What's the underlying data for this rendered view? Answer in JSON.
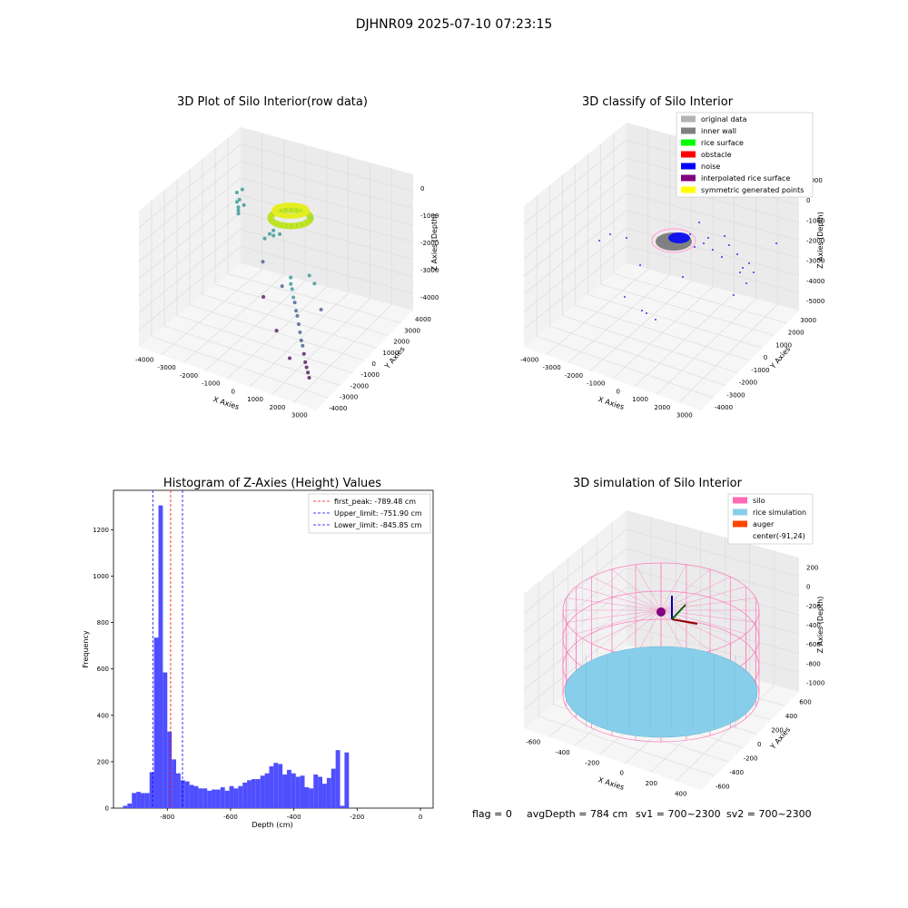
{
  "suptitle": "DJHNR09 2025-07-10 07:23:15",
  "footer": {
    "flag": "flag = 0",
    "avg": "avgDepth = 784 cm",
    "sv1": "sv1 = 700~2300",
    "sv2": "sv2 = 700~2300"
  },
  "colors": {
    "pane": "#f2f2f2",
    "grid": "#d9d9d9",
    "hist_bar": "#4f4fff",
    "silo": "#ff69b4",
    "rice_sim": "#87ceeb",
    "auger": "#ff4500"
  },
  "chart_data": [
    {
      "type": "scatter",
      "title": "3D Plot of Silo Interior(row data)",
      "xlabel": "X Axies",
      "ylabel": "Y Axies",
      "zlabel": "Z Axies (Depth)",
      "x_ticks": [
        "-4000",
        "-3000",
        "-2000",
        "-1000",
        "0",
        "1000",
        "2000",
        "3000"
      ],
      "y_ticks": [
        "-4000",
        "-3000",
        "-2000",
        "-1000",
        "0",
        "1000",
        "2000",
        "3000",
        "4000"
      ],
      "z_ticks": [
        "-4000",
        "-3000",
        "-2000",
        "-1000",
        "0"
      ],
      "points": [
        [
          -3100,
          2200,
          -2000
        ],
        [
          -3000,
          2100,
          -2100
        ],
        [
          -2950,
          2000,
          -2150
        ],
        [
          -2900,
          1900,
          -2200
        ],
        [
          -3050,
          2300,
          -1950
        ],
        [
          -2850,
          2250,
          -2050
        ],
        [
          -3200,
          2400,
          -1800
        ],
        [
          -2700,
          1800,
          -1300
        ],
        [
          -800,
          100,
          -1500
        ],
        [
          -700,
          200,
          -1400
        ],
        [
          -600,
          0,
          -1450
        ],
        [
          -500,
          300,
          -1500
        ],
        [
          -900,
          -100,
          -1600
        ],
        [
          800,
          -1500,
          -1800
        ],
        [
          900,
          -1700,
          -1900
        ],
        [
          1000,
          -1800,
          -2000
        ],
        [
          1100,
          -1900,
          -2200
        ],
        [
          1200,
          -2000,
          -2300
        ],
        [
          1300,
          -2100,
          -2500
        ],
        [
          1400,
          -2200,
          -2600
        ],
        [
          1500,
          -2300,
          -2800
        ],
        [
          1600,
          -2400,
          -3000
        ],
        [
          1700,
          -2500,
          -3200
        ],
        [
          1800,
          -2600,
          -3300
        ],
        [
          1900,
          -2700,
          -3500
        ],
        [
          2000,
          -2800,
          -3700
        ],
        [
          2100,
          -2900,
          -3800
        ],
        [
          2200,
          -3000,
          -3900
        ],
        [
          2300,
          -3100,
          -4000
        ],
        [
          1500,
          -1000,
          -2000
        ],
        [
          1200,
          -800,
          -1900
        ],
        [
          2000,
          -1500,
          -2500
        ],
        [
          -1500,
          1000,
          -3000
        ],
        [
          -1000,
          0,
          -3600
        ],
        [
          0,
          -1000,
          -4000
        ],
        [
          1000,
          -2000,
          -4200
        ],
        [
          -500,
          500,
          -3300
        ]
      ],
      "surface_note": ""
    },
    {
      "type": "scatter",
      "title": "3D classify of Silo Interior",
      "xlabel": "X Axies",
      "ylabel": "Y Axies",
      "zlabel": "Z Axies (Depth)",
      "x_ticks": [
        "-4000",
        "-3000",
        "-2000",
        "-1000",
        "0",
        "1000",
        "2000",
        "3000"
      ],
      "y_ticks": [
        "-4000",
        "-3000",
        "-2000",
        "-1000",
        "0",
        "1000",
        "2000",
        "3000"
      ],
      "z_ticks": [
        "-5000",
        "-4000",
        "-3000",
        "-2000",
        "-1000",
        "0",
        "1000"
      ],
      "legend": [
        {
          "label": "original data",
          "color": "#b3b3b3"
        },
        {
          "label": "inner wall",
          "color": "#808080"
        },
        {
          "label": "rice surface",
          "color": "#00ff00"
        },
        {
          "label": "obstacle",
          "color": "#ff0000"
        },
        {
          "label": "noise",
          "color": "#0000ff"
        },
        {
          "label": "interpolated rice surface",
          "color": "#800080"
        },
        {
          "label": "symmetric generated points",
          "color": "#ffff00"
        }
      ],
      "legend_loc": "upper right"
    },
    {
      "type": "bar",
      "title": "Histogram of Z-Axies (Height) Values",
      "xlabel": "Depth (cm)",
      "ylabel": "Frequency",
      "xlim": [
        -970,
        40
      ],
      "ylim": [
        0,
        1370
      ],
      "x_ticks": [
        -800,
        -600,
        -400,
        -200,
        0
      ],
      "y_ticks": [
        0,
        200,
        400,
        600,
        800,
        1000,
        1200
      ],
      "bin_start": -940,
      "bin_width": 14,
      "values": [
        10,
        20,
        65,
        70,
        65,
        65,
        155,
        735,
        1305,
        585,
        330,
        210,
        150,
        120,
        115,
        100,
        95,
        85,
        85,
        75,
        80,
        80,
        90,
        75,
        95,
        85,
        95,
        110,
        120,
        125,
        125,
        140,
        150,
        180,
        195,
        190,
        145,
        165,
        150,
        135,
        140,
        90,
        85,
        145,
        135,
        105,
        130,
        170,
        250,
        10,
        240
      ],
      "vlines": [
        {
          "label": "first_peak: -789.48 cm",
          "x": -789.48,
          "color": "#ff0000"
        },
        {
          "label": "Upper_limit: -751.90 cm",
          "x": -751.9,
          "color": "#0000ff"
        },
        {
          "label": "Lower_limit: -845.85 cm",
          "x": -845.85,
          "color": "#0000ff"
        }
      ],
      "legend_loc": "upper right"
    },
    {
      "type": "surface",
      "title": "3D simulation of Silo Interior",
      "xlabel": "X Axies",
      "ylabel": "Y Axies",
      "zlabel": "Z Axies (Depth)",
      "x_ticks": [
        "-600",
        "-400",
        "-200",
        "0",
        "200",
        "400"
      ],
      "y_ticks": [
        "-600",
        "-400",
        "-200",
        "0",
        "200",
        "400",
        "600"
      ],
      "z_ticks": [
        "-1000",
        "-800",
        "-600",
        "-400",
        "-200",
        "0",
        "200"
      ],
      "legend": [
        {
          "label": "silo",
          "color": "#ff69b4"
        },
        {
          "label": "rice simulation",
          "color": "#87ceeb"
        },
        {
          "label": "auger",
          "color": "#ff4500"
        },
        {
          "label": "center(-91,24)",
          "color": ""
        }
      ],
      "legend_loc": "upper right"
    }
  ]
}
